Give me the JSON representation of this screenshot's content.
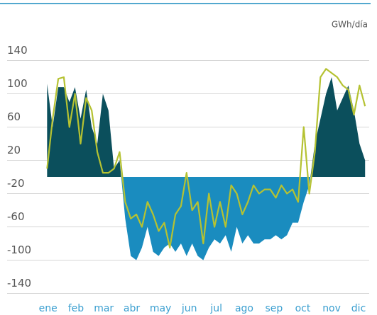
{
  "chart_data": {
    "type": "area",
    "unit": "GWh/día",
    "x": [
      14,
      20,
      26,
      32,
      38,
      44,
      50,
      56,
      62,
      68,
      74,
      80,
      86,
      92,
      98,
      104,
      110,
      116,
      122,
      128,
      134,
      140,
      146,
      152,
      158,
      164,
      170,
      176,
      182,
      188,
      194,
      200,
      206,
      212,
      218,
      224,
      230,
      236,
      242,
      248,
      254,
      260,
      266,
      272,
      278,
      284,
      290,
      296,
      302,
      308,
      314,
      320,
      326,
      332,
      338,
      344,
      350,
      356
    ],
    "series": [
      {
        "type": "area",
        "color": "#0b4f5c",
        "negative_color": "#1a8cbf",
        "values": [
          112,
          60,
          108,
          108,
          90,
          108,
          70,
          105,
          60,
          40,
          100,
          80,
          10,
          20,
          -50,
          -95,
          -100,
          -85,
          -60,
          -90,
          -95,
          -85,
          -80,
          -90,
          -80,
          -95,
          -80,
          -95,
          -100,
          -85,
          -75,
          -80,
          -70,
          -90,
          -60,
          -80,
          -70,
          -80,
          -80,
          -75,
          -75,
          -70,
          -75,
          -70,
          -55,
          -55,
          -30,
          -10,
          40,
          70,
          100,
          120,
          80,
          95,
          110,
          80,
          40,
          20
        ]
      },
      {
        "type": "line",
        "color": "#b5c232",
        "values": [
          10,
          70,
          118,
          120,
          60,
          100,
          40,
          95,
          80,
          30,
          5,
          5,
          10,
          30,
          -30,
          -50,
          -45,
          -60,
          -30,
          -45,
          -65,
          -55,
          -85,
          -45,
          -35,
          5,
          -40,
          -30,
          -80,
          -20,
          -60,
          -30,
          -60,
          -10,
          -20,
          -45,
          -30,
          -10,
          -20,
          -15,
          -15,
          -25,
          -10,
          -20,
          -15,
          -30,
          60,
          -20,
          30,
          120,
          130,
          125,
          120,
          110,
          105,
          75,
          110,
          85
        ]
      }
    ],
    "xlim": [
      0,
      365
    ],
    "xticks": [
      {
        "value": 15,
        "label": "ene"
      },
      {
        "value": 45,
        "label": "feb"
      },
      {
        "value": 75,
        "label": "mar"
      },
      {
        "value": 105,
        "label": "abr"
      },
      {
        "value": 136,
        "label": "may"
      },
      {
        "value": 167,
        "label": "jun"
      },
      {
        "value": 196,
        "label": "jul"
      },
      {
        "value": 226,
        "label": "ago"
      },
      {
        "value": 258,
        "label": "sep"
      },
      {
        "value": 289,
        "label": "oct"
      },
      {
        "value": 320,
        "label": "nov"
      },
      {
        "value": 349,
        "label": "dic"
      }
    ],
    "ylim": [
      -150,
      150
    ],
    "yticks": [
      -140,
      -100,
      -60,
      -20,
      20,
      60,
      100,
      140
    ],
    "grid": true
  }
}
